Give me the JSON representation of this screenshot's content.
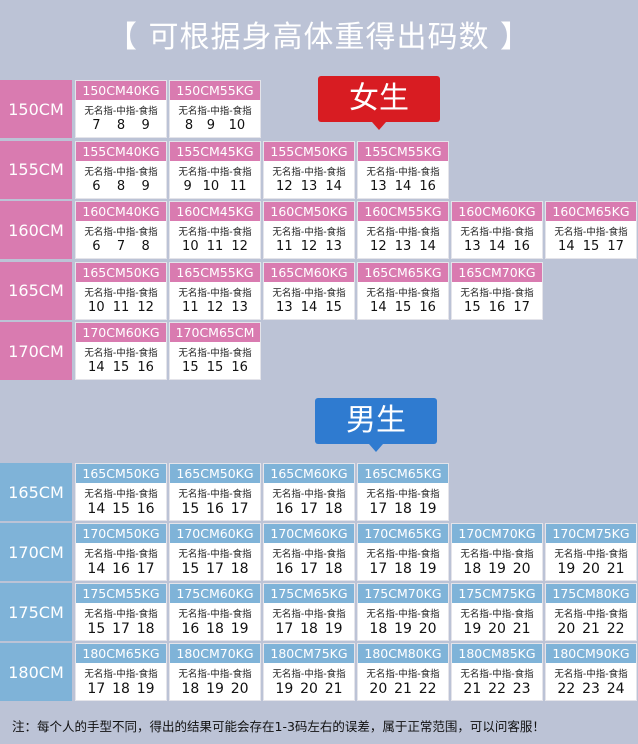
{
  "title": "【 可根据身高体重得出码数 】",
  "finger_label": "无名指-中指-食指",
  "colors": {
    "female": "#d97bb0",
    "male": "#7fb3d8",
    "female_badge": "#d81c22",
    "male_badge": "#2f7bd0",
    "background": "#bcc3d6"
  },
  "female": {
    "badge": "女生",
    "rows": [
      {
        "height": "150CM",
        "cells": [
          {
            "label": "150CM40KG",
            "sizes": [
              "7",
              "8",
              "9"
            ]
          },
          {
            "label": "150CM55KG",
            "sizes": [
              "8",
              "9",
              "10"
            ]
          }
        ]
      },
      {
        "height": "155CM",
        "cells": [
          {
            "label": "155CM40KG",
            "sizes": [
              "6",
              "8",
              "9"
            ]
          },
          {
            "label": "155CM45KG",
            "sizes": [
              "9",
              "10",
              "11"
            ]
          },
          {
            "label": "155CM50KG",
            "sizes": [
              "12",
              "13",
              "14"
            ]
          },
          {
            "label": "155CM55KG",
            "sizes": [
              "13",
              "14",
              "16"
            ]
          }
        ]
      },
      {
        "height": "160CM",
        "cells": [
          {
            "label": "160CM40KG",
            "sizes": [
              "6",
              "7",
              "8"
            ]
          },
          {
            "label": "160CM45KG",
            "sizes": [
              "10",
              "11",
              "12"
            ]
          },
          {
            "label": "160CM50KG",
            "sizes": [
              "11",
              "12",
              "13"
            ]
          },
          {
            "label": "160CM55KG",
            "sizes": [
              "12",
              "13",
              "14"
            ]
          },
          {
            "label": "160CM60KG",
            "sizes": [
              "13",
              "14",
              "16"
            ]
          },
          {
            "label": "160CM65KG",
            "sizes": [
              "14",
              "15",
              "17"
            ]
          }
        ]
      },
      {
        "height": "165CM",
        "cells": [
          {
            "label": "165CM50KG",
            "sizes": [
              "10",
              "11",
              "12"
            ]
          },
          {
            "label": "165CM55KG",
            "sizes": [
              "11",
              "12",
              "13"
            ]
          },
          {
            "label": "165CM60KG",
            "sizes": [
              "13",
              "14",
              "15"
            ]
          },
          {
            "label": "165CM65KG",
            "sizes": [
              "14",
              "15",
              "16"
            ]
          },
          {
            "label": "165CM70KG",
            "sizes": [
              "15",
              "16",
              "17"
            ]
          }
        ]
      },
      {
        "height": "170CM",
        "cells": [
          {
            "label": "170CM60KG",
            "sizes": [
              "14",
              "15",
              "16"
            ]
          },
          {
            "label": "170CM65CM",
            "sizes": [
              "15",
              "15",
              "16"
            ]
          }
        ]
      }
    ]
  },
  "male": {
    "badge": "男生",
    "rows": [
      {
        "height": "165CM",
        "cells": [
          {
            "label": "165CM50KG",
            "sizes": [
              "14",
              "15",
              "16"
            ]
          },
          {
            "label": "165CM50KG",
            "sizes": [
              "15",
              "16",
              "17"
            ]
          },
          {
            "label": "165CM60KG",
            "sizes": [
              "16",
              "17",
              "18"
            ]
          },
          {
            "label": "165CM65KG",
            "sizes": [
              "17",
              "18",
              "19"
            ]
          }
        ]
      },
      {
        "height": "170CM",
        "cells": [
          {
            "label": "170CM50KG",
            "sizes": [
              "14",
              "16",
              "17"
            ]
          },
          {
            "label": "170CM60KG",
            "sizes": [
              "15",
              "17",
              "18"
            ]
          },
          {
            "label": "170CM60KG",
            "sizes": [
              "16",
              "17",
              "18"
            ]
          },
          {
            "label": "170CM65KG",
            "sizes": [
              "17",
              "18",
              "19"
            ]
          },
          {
            "label": "170CM70KG",
            "sizes": [
              "18",
              "19",
              "20"
            ]
          },
          {
            "label": "170CM75KG",
            "sizes": [
              "19",
              "20",
              "21"
            ]
          }
        ]
      },
      {
        "height": "175CM",
        "cells": [
          {
            "label": "175CM55KG",
            "sizes": [
              "15",
              "17",
              "18"
            ]
          },
          {
            "label": "175CM60KG",
            "sizes": [
              "16",
              "18",
              "19"
            ]
          },
          {
            "label": "175CM65KG",
            "sizes": [
              "17",
              "18",
              "19"
            ]
          },
          {
            "label": "175CM70KG",
            "sizes": [
              "18",
              "19",
              "20"
            ]
          },
          {
            "label": "175CM75KG",
            "sizes": [
              "19",
              "20",
              "21"
            ]
          },
          {
            "label": "175CM80KG",
            "sizes": [
              "20",
              "21",
              "22"
            ]
          }
        ]
      },
      {
        "height": "180CM",
        "cells": [
          {
            "label": "180CM65KG",
            "sizes": [
              "17",
              "18",
              "19"
            ]
          },
          {
            "label": "180CM70KG",
            "sizes": [
              "18",
              "19",
              "20"
            ]
          },
          {
            "label": "180CM75KG",
            "sizes": [
              "19",
              "20",
              "21"
            ]
          },
          {
            "label": "180CM80KG",
            "sizes": [
              "20",
              "21",
              "22"
            ]
          },
          {
            "label": "180CM85KG",
            "sizes": [
              "21",
              "22",
              "23"
            ]
          },
          {
            "label": "180CM90KG",
            "sizes": [
              "22",
              "23",
              "24"
            ]
          }
        ]
      }
    ]
  },
  "note": "注：每个人的手型不同，得出的结果可能会存在1-3码左右的误差，属于正常范围，可以问客服！"
}
